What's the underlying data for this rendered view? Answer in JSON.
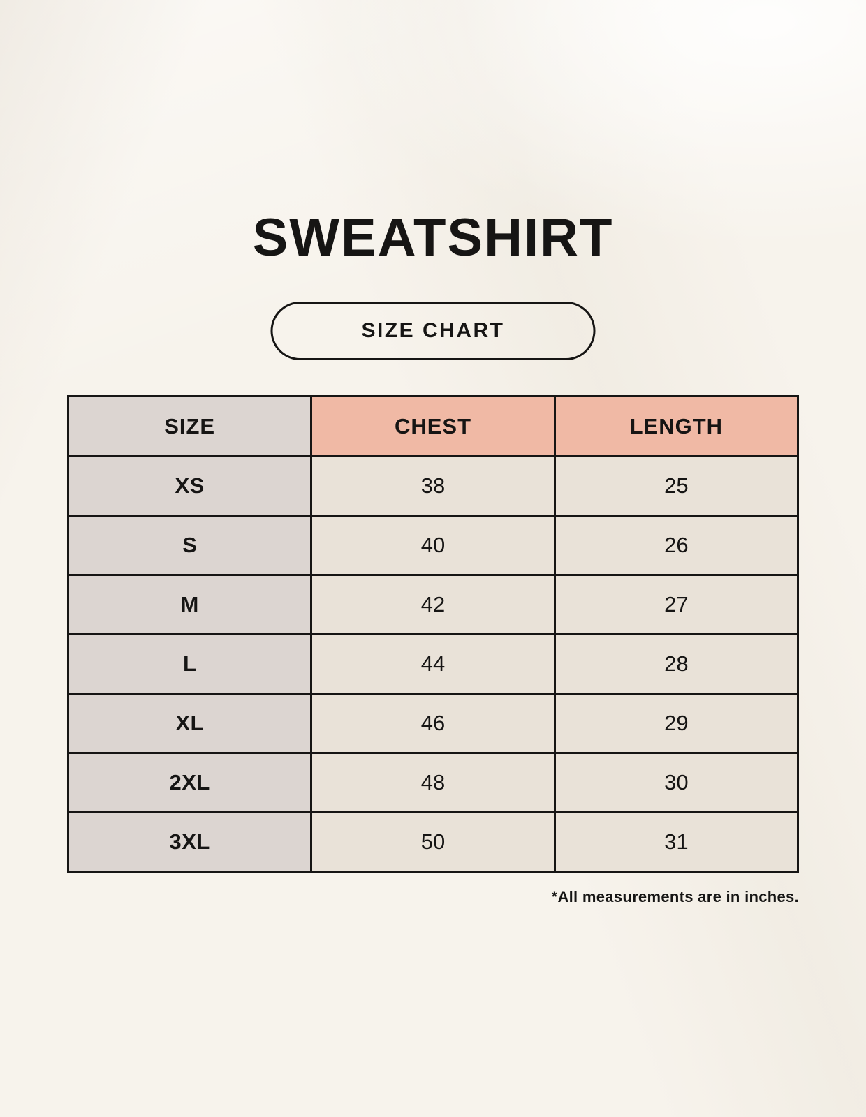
{
  "header": {
    "title": "SWEATSHIRT",
    "badge": "SIZE CHART"
  },
  "footnote": "*All measurements are in inches.",
  "chart_data": {
    "type": "table",
    "title": "SWEATSHIRT",
    "subtitle": "SIZE CHART",
    "columns": [
      "SIZE",
      "CHEST",
      "LENGTH"
    ],
    "rows": [
      {
        "size": "XS",
        "chest": 38,
        "length": 25
      },
      {
        "size": "S",
        "chest": 40,
        "length": 26
      },
      {
        "size": "M",
        "chest": 42,
        "length": 27
      },
      {
        "size": "L",
        "chest": 44,
        "length": 28
      },
      {
        "size": "XL",
        "chest": 46,
        "length": 29
      },
      {
        "size": "2XL",
        "chest": 48,
        "length": 30
      },
      {
        "size": "3XL",
        "chest": 50,
        "length": 31
      }
    ],
    "units": "inches",
    "note": "*All measurements are in inches."
  },
  "colors": {
    "background": "#F7F3EC",
    "size_column_bg": "#DCD5D1",
    "measure_header_bg": "#F0B9A5",
    "value_cell_bg": "#E9E2D8",
    "border": "#161514",
    "text": "#161514"
  }
}
